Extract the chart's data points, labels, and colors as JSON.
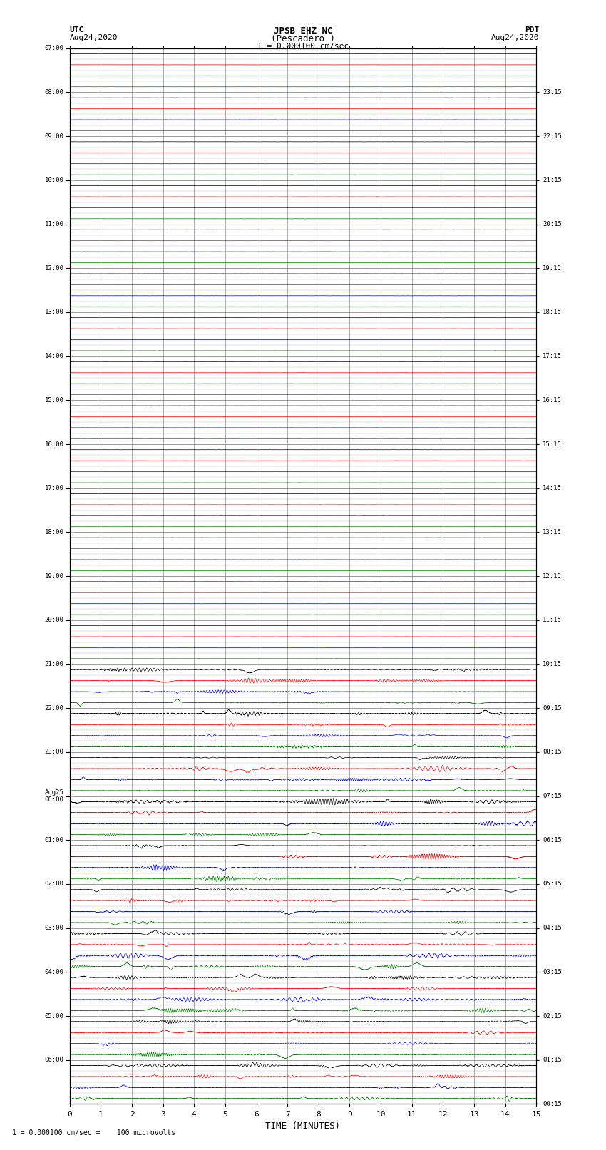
{
  "title_line1": "JPSB EHZ NC",
  "title_line2": "(Pescadero )",
  "title_line3": "I = 0.000100 cm/sec",
  "left_label_line1": "UTC",
  "left_label_line2": "Aug24,2020",
  "right_label_line1": "PDT",
  "right_label_line2": "Aug24,2020",
  "bottom_label": "TIME (MINUTES)",
  "footnote": "1 = 0.000100 cm/sec =    100 microvolts",
  "utc_times": [
    "07:00",
    "08:00",
    "09:00",
    "10:00",
    "11:00",
    "12:00",
    "13:00",
    "14:00",
    "15:00",
    "16:00",
    "17:00",
    "18:00",
    "19:00",
    "20:00",
    "21:00",
    "22:00",
    "23:00",
    "Aug25\n00:00",
    "01:00",
    "02:00",
    "03:00",
    "04:00",
    "05:00",
    "06:00"
  ],
  "pdt_times": [
    "00:15",
    "01:15",
    "02:15",
    "03:15",
    "04:15",
    "05:15",
    "06:15",
    "07:15",
    "08:15",
    "09:15",
    "10:15",
    "11:15",
    "12:15",
    "13:15",
    "14:15",
    "15:15",
    "16:15",
    "17:15",
    "18:15",
    "19:15",
    "20:15",
    "21:15",
    "22:15",
    "23:15"
  ],
  "num_hours": 24,
  "sub_traces": 4,
  "minutes": 15,
  "colors_cycle": [
    "black",
    "red",
    "blue",
    "green"
  ],
  "bg_color": "#ffffff",
  "grid_color": "#888888",
  "line_width": 0.5,
  "quiet_hours": 14,
  "active_hours": 10
}
